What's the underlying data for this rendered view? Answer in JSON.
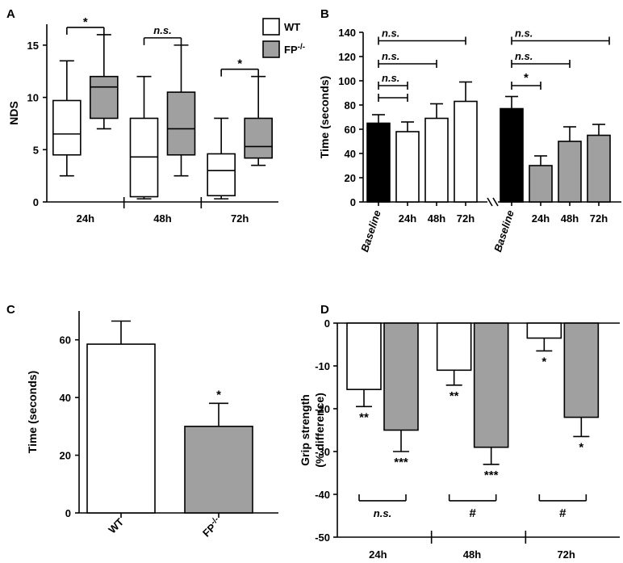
{
  "colors": {
    "wt": "#ffffff",
    "fp": "#a0a0a0",
    "black": "#000000",
    "stroke": "#000000"
  },
  "chart_data": [
    {
      "panel": "A",
      "type": "box",
      "ylabel": "NDS",
      "ylim": [
        0,
        17
      ],
      "yticks": [
        "0",
        "5",
        "10",
        "15"
      ],
      "categories": [
        "24h",
        "48h",
        "72h"
      ],
      "legend": [
        {
          "label": "WT",
          "sup": "",
          "color": "wt"
        },
        {
          "label": "FP",
          "sup": "-/-",
          "color": "fp"
        }
      ],
      "series": [
        {
          "name": "WT",
          "boxes": [
            {
              "min": 2.5,
              "q1": 4.5,
              "median": 6.5,
              "q3": 9.7,
              "max": 13.5
            },
            {
              "min": 0.3,
              "q1": 0.5,
              "median": 4.3,
              "q3": 8.0,
              "max": 12.0
            },
            {
              "min": 0.3,
              "q1": 0.6,
              "median": 3.0,
              "q3": 4.6,
              "max": 8.0
            }
          ]
        },
        {
          "name": "FP-/-",
          "boxes": [
            {
              "min": 7.0,
              "q1": 8.0,
              "median": 11.0,
              "q3": 12.0,
              "max": 16.0
            },
            {
              "min": 2.5,
              "q1": 4.5,
              "median": 7.0,
              "q3": 10.5,
              "max": 15.0
            },
            {
              "min": 3.5,
              "q1": 4.2,
              "median": 5.3,
              "q3": 8.0,
              "max": 12.0
            }
          ]
        }
      ],
      "comparisons": [
        {
          "group": 0,
          "label": "*"
        },
        {
          "group": 1,
          "label": "n.s."
        },
        {
          "group": 2,
          "label": "*"
        }
      ]
    },
    {
      "panel": "B",
      "type": "bar",
      "ylabel": "Time (seconds)",
      "ylim": [
        0,
        140
      ],
      "yticks": [
        "0",
        "20",
        "40",
        "60",
        "80",
        "100",
        "120",
        "140"
      ],
      "groups": [
        {
          "name": "WT",
          "categories": [
            "Baseline",
            "24h",
            "48h",
            "72h"
          ],
          "values": [
            65,
            58,
            69,
            83
          ],
          "errors": [
            7,
            8,
            12,
            16
          ],
          "colors": [
            "black",
            "wt",
            "wt",
            "wt"
          ]
        },
        {
          "name": "FP-/-",
          "categories": [
            "Baseline",
            "24h",
            "48h",
            "72h"
          ],
          "values": [
            77,
            30,
            50,
            55
          ],
          "errors": [
            10,
            8,
            12,
            9
          ],
          "colors": [
            "black",
            "fp",
            "fp",
            "fp"
          ]
        }
      ],
      "comparisons": [
        {
          "group": 0,
          "from": 0,
          "to": 1,
          "label": "n.s."
        },
        {
          "group": 0,
          "from": 0,
          "to": 2,
          "label": "n.s."
        },
        {
          "group": 0,
          "from": 0,
          "to": 3,
          "label": "n.s."
        },
        {
          "group": 1,
          "from": 0,
          "to": 1,
          "label": "*"
        },
        {
          "group": 1,
          "from": 0,
          "to": 2,
          "label": "n.s."
        },
        {
          "group": 1,
          "from": 0,
          "to": 3,
          "label": "n.s."
        }
      ]
    },
    {
      "panel": "C",
      "type": "bar",
      "ylabel": "Time (seconds)",
      "ylim": [
        0,
        70
      ],
      "yticks": [
        "0",
        "20",
        "40",
        "60"
      ],
      "categories": [
        {
          "label": "WT",
          "sup": ""
        },
        {
          "label": "FP",
          "sup": "-/-"
        }
      ],
      "values": [
        58.5,
        30
      ],
      "errors": [
        8,
        8
      ],
      "colors": [
        "wt",
        "fp"
      ],
      "annotations": [
        "",
        "*"
      ]
    },
    {
      "panel": "D",
      "type": "bar",
      "ylabel": "Grip strength",
      "ylabel2": "(% difference)",
      "ylim": [
        -50,
        0
      ],
      "yticks": [
        "0",
        "-10",
        "-20",
        "-30",
        "-40",
        "-50"
      ],
      "categories": [
        "24h",
        "48h",
        "72h"
      ],
      "series": [
        {
          "name": "WT",
          "values": [
            -15.5,
            -11,
            -3.5
          ],
          "errors": [
            4,
            3.5,
            3
          ],
          "annotations": [
            "**",
            "**",
            "*"
          ],
          "color": "wt"
        },
        {
          "name": "FP-/-",
          "values": [
            -25,
            -29,
            -22
          ],
          "errors": [
            5,
            4,
            4.5
          ],
          "annotations": [
            "***",
            "***",
            "*"
          ],
          "color": "fp"
        }
      ],
      "comparisons": [
        {
          "group": 0,
          "label": "n.s."
        },
        {
          "group": 1,
          "label": "#"
        },
        {
          "group": 2,
          "label": "#"
        }
      ]
    }
  ]
}
